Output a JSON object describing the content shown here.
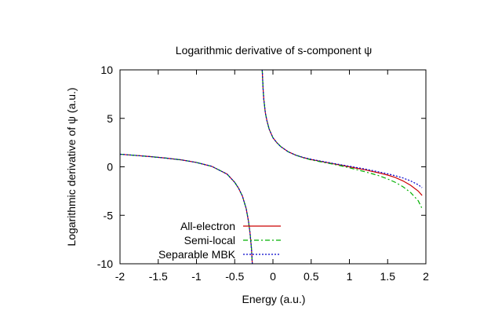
{
  "chart_data": {
    "type": "line",
    "title": "Logarithmic derivative of s-component ψ",
    "xlabel": "Energy (a.u.)",
    "ylabel": "Logarithmic derivative of ψ (a.u.)",
    "xlim": [
      -2,
      2
    ],
    "ylim": [
      -10,
      10
    ],
    "xticks": [
      "-2",
      "-1.5",
      "-1",
      "-0.5",
      "0",
      "0.5",
      "1",
      "1.5",
      "2"
    ],
    "yticks": [
      "-10",
      "-5",
      "0",
      "5",
      "10"
    ],
    "grid": false,
    "legend_position": "bottom-left",
    "series": [
      {
        "name": "All-electron",
        "color": "#cc0000",
        "dash": "",
        "x": [
          -2.0,
          -1.8,
          -1.6,
          -1.4,
          -1.2,
          -1.0,
          -0.8,
          -0.6,
          -0.5,
          -0.45,
          -0.4,
          -0.35,
          -0.32,
          -0.3,
          -0.28,
          -0.27,
          null,
          -0.14,
          -0.13,
          -0.12,
          -0.1,
          -0.08,
          -0.05,
          0.0,
          0.05,
          0.1,
          0.2,
          0.3,
          0.4,
          0.5,
          0.6,
          0.7,
          0.8,
          0.9,
          1.0,
          1.1,
          1.2,
          1.3,
          1.4,
          1.5,
          1.6,
          1.7,
          1.8,
          1.9,
          1.95
        ],
        "y": [
          1.3,
          1.18,
          1.05,
          0.9,
          0.72,
          0.45,
          0.05,
          -0.75,
          -1.6,
          -2.2,
          -3.0,
          -4.3,
          -5.6,
          -6.8,
          -8.5,
          -10.0,
          null,
          10.0,
          8.2,
          7.0,
          5.6,
          4.8,
          3.9,
          3.0,
          2.5,
          2.1,
          1.55,
          1.2,
          0.95,
          0.75,
          0.6,
          0.45,
          0.3,
          0.15,
          0.0,
          -0.15,
          -0.3,
          -0.48,
          -0.65,
          -0.85,
          -1.1,
          -1.45,
          -1.9,
          -2.5,
          -2.95
        ]
      },
      {
        "name": "Semi-local",
        "color": "#00b000",
        "dash": "6,3,2,3",
        "x": [
          -2.0,
          -1.8,
          -1.6,
          -1.4,
          -1.2,
          -1.0,
          -0.8,
          -0.6,
          -0.5,
          -0.45,
          -0.4,
          -0.35,
          -0.32,
          -0.3,
          -0.28,
          -0.27,
          null,
          -0.14,
          -0.13,
          -0.12,
          -0.1,
          -0.08,
          -0.05,
          0.0,
          0.05,
          0.1,
          0.2,
          0.3,
          0.4,
          0.5,
          0.6,
          0.7,
          0.8,
          0.9,
          1.0,
          1.1,
          1.2,
          1.3,
          1.4,
          1.5,
          1.6,
          1.7,
          1.8,
          1.9,
          1.95
        ],
        "y": [
          1.3,
          1.18,
          1.05,
          0.9,
          0.72,
          0.45,
          0.05,
          -0.75,
          -1.6,
          -2.2,
          -3.0,
          -4.3,
          -5.6,
          -6.8,
          -8.5,
          -10.0,
          null,
          10.0,
          8.2,
          7.0,
          5.6,
          4.8,
          3.9,
          3.0,
          2.5,
          2.1,
          1.55,
          1.2,
          0.93,
          0.72,
          0.55,
          0.4,
          0.25,
          0.08,
          -0.1,
          -0.3,
          -0.5,
          -0.72,
          -0.95,
          -1.25,
          -1.6,
          -2.05,
          -2.65,
          -3.5,
          -4.3
        ]
      },
      {
        "name": "Separable MBK",
        "color": "#0000cc",
        "dash": "2,2",
        "x": [
          -2.0,
          -1.8,
          -1.6,
          -1.4,
          -1.2,
          -1.0,
          -0.8,
          -0.6,
          -0.5,
          -0.45,
          -0.4,
          -0.35,
          -0.32,
          -0.3,
          -0.28,
          -0.27,
          null,
          -0.14,
          -0.13,
          -0.12,
          -0.1,
          -0.08,
          -0.05,
          0.0,
          0.05,
          0.1,
          0.2,
          0.3,
          0.4,
          0.5,
          0.6,
          0.7,
          0.8,
          0.9,
          1.0,
          1.1,
          1.2,
          1.3,
          1.4,
          1.5,
          1.6,
          1.7,
          1.8,
          1.9,
          1.95
        ],
        "y": [
          1.3,
          1.18,
          1.05,
          0.9,
          0.72,
          0.45,
          0.05,
          -0.75,
          -1.6,
          -2.2,
          -3.0,
          -4.3,
          -5.6,
          -6.8,
          -8.5,
          -10.0,
          null,
          10.0,
          8.2,
          7.0,
          5.6,
          4.8,
          3.9,
          3.0,
          2.5,
          2.1,
          1.55,
          1.2,
          0.96,
          0.78,
          0.63,
          0.48,
          0.34,
          0.2,
          0.06,
          -0.08,
          -0.22,
          -0.38,
          -0.55,
          -0.72,
          -0.92,
          -1.15,
          -1.45,
          -1.85,
          -2.15
        ]
      }
    ]
  }
}
